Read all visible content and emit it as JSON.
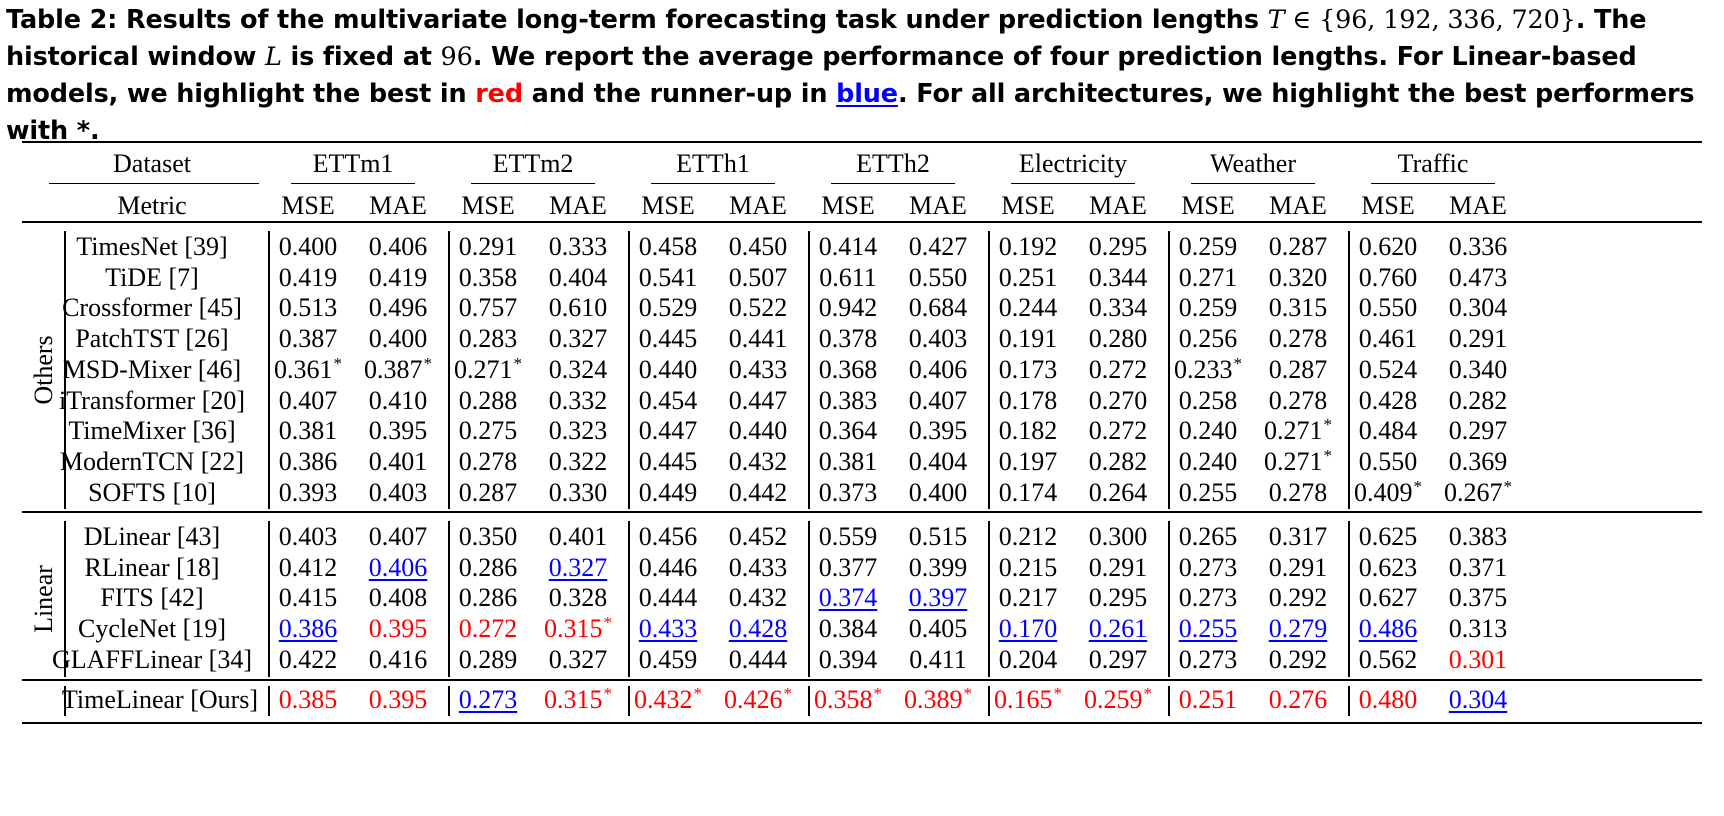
{
  "caption": {
    "label": "Table 2:",
    "part1": "Results of the multivariate long-term forecasting task under prediction lengths",
    "T_symbol": "T",
    "set_expr": "∈ {96, 192, 336, 720}",
    "part2": ". The historical window",
    "L_symbol": "L",
    "part3": "is fixed at",
    "L_value": "96",
    "part4": ". We report the average performance of four prediction lengths. For Linear-based models, we highlight the best in",
    "red_word": "red",
    "part5": "and the runner-up in",
    "blue_word": "blue",
    "part6": ". For all architectures, we highlight the best performers with *."
  },
  "table": {
    "dataset_label": "Dataset",
    "metric_label": "Metric",
    "datasets": [
      "ETTm1",
      "ETTm2",
      "ETTh1",
      "ETTh2",
      "Electricity",
      "Weather",
      "Traffic"
    ],
    "metrics": [
      "MSE",
      "MAE"
    ],
    "groups": [
      {
        "name": "Others",
        "rows": [
          {
            "model": "TimesNet [39]",
            "values": [
              "0.400",
              "0.406",
              "0.291",
              "0.333",
              "0.458",
              "0.450",
              "0.414",
              "0.427",
              "0.192",
              "0.295",
              "0.259",
              "0.287",
              "0.620",
              "0.336"
            ]
          },
          {
            "model": "TiDE [7]",
            "values": [
              "0.419",
              "0.419",
              "0.358",
              "0.404",
              "0.541",
              "0.507",
              "0.611",
              "0.550",
              "0.251",
              "0.344",
              "0.271",
              "0.320",
              "0.760",
              "0.473"
            ]
          },
          {
            "model": "Crossformer [45]",
            "values": [
              "0.513",
              "0.496",
              "0.757",
              "0.610",
              "0.529",
              "0.522",
              "0.942",
              "0.684",
              "0.244",
              "0.334",
              "0.259",
              "0.315",
              "0.550",
              "0.304"
            ]
          },
          {
            "model": "PatchTST [26]",
            "values": [
              "0.387",
              "0.400",
              "0.283",
              "0.327",
              "0.445",
              "0.441",
              "0.378",
              "0.403",
              "0.191",
              "0.280",
              "0.256",
              "0.278",
              "0.461",
              "0.291"
            ]
          },
          {
            "model": "MSD-Mixer [46]",
            "values": [
              "0.361*",
              "0.387*",
              "0.271*",
              "0.324",
              "0.440",
              "0.433",
              "0.368",
              "0.406",
              "0.173",
              "0.272",
              "0.233*",
              "0.287",
              "0.524",
              "0.340"
            ]
          },
          {
            "model": "iTransformer [20]",
            "values": [
              "0.407",
              "0.410",
              "0.288",
              "0.332",
              "0.454",
              "0.447",
              "0.383",
              "0.407",
              "0.178",
              "0.270",
              "0.258",
              "0.278",
              "0.428",
              "0.282"
            ]
          },
          {
            "model": "TimeMixer [36]",
            "values": [
              "0.381",
              "0.395",
              "0.275",
              "0.323",
              "0.447",
              "0.440",
              "0.364",
              "0.395",
              "0.182",
              "0.272",
              "0.240",
              "0.271*",
              "0.484",
              "0.297"
            ]
          },
          {
            "model": "ModernTCN [22]",
            "values": [
              "0.386",
              "0.401",
              "0.278",
              "0.322",
              "0.445",
              "0.432",
              "0.381",
              "0.404",
              "0.197",
              "0.282",
              "0.240",
              "0.271*",
              "0.550",
              "0.369"
            ]
          },
          {
            "model": "SOFTS [10]",
            "values": [
              "0.393",
              "0.403",
              "0.287",
              "0.330",
              "0.449",
              "0.442",
              "0.373",
              "0.400",
              "0.174",
              "0.264",
              "0.255",
              "0.278",
              "0.409*",
              "0.267*"
            ]
          }
        ]
      },
      {
        "name": "Linear",
        "rows": [
          {
            "model": "DLinear [43]",
            "values": [
              "0.403",
              "0.407",
              "0.350",
              "0.401",
              "0.456",
              "0.452",
              "0.559",
              "0.515",
              "0.212",
              "0.300",
              "0.265",
              "0.317",
              "0.625",
              "0.383"
            ]
          },
          {
            "model": "RLinear [18]",
            "values": [
              "0.412",
              "0.406",
              "0.286",
              "0.327",
              "0.446",
              "0.433",
              "0.377",
              "0.399",
              "0.215",
              "0.291",
              "0.273",
              "0.291",
              "0.623",
              "0.371"
            ],
            "styles": [
              "",
              "blue",
              "",
              "blue",
              "",
              "",
              "",
              "",
              "",
              "",
              "",
              "",
              "",
              ""
            ]
          },
          {
            "model": "FITS [42]",
            "values": [
              "0.415",
              "0.408",
              "0.286",
              "0.328",
              "0.444",
              "0.432",
              "0.374",
              "0.397",
              "0.217",
              "0.295",
              "0.273",
              "0.292",
              "0.627",
              "0.375"
            ],
            "styles": [
              "",
              "",
              "",
              "",
              "",
              "",
              "blue",
              "blue",
              "",
              "",
              "",
              "",
              "",
              ""
            ]
          },
          {
            "model": "CycleNet [19]",
            "values": [
              "0.386",
              "0.395",
              "0.272",
              "0.315*",
              "0.433",
              "0.428",
              "0.384",
              "0.405",
              "0.170",
              "0.261",
              "0.255",
              "0.279",
              "0.486",
              "0.313"
            ],
            "styles": [
              "blue",
              "red",
              "red",
              "red",
              "blue",
              "blue",
              "",
              "",
              "blue",
              "blue",
              "blue",
              "blue",
              "blue",
              ""
            ]
          },
          {
            "model": "GLAFFLinear [34]",
            "values": [
              "0.422",
              "0.416",
              "0.289",
              "0.327",
              "0.459",
              "0.444",
              "0.394",
              "0.411",
              "0.204",
              "0.297",
              "0.273",
              "0.292",
              "0.562",
              "0.301"
            ],
            "styles": [
              "",
              "",
              "",
              "",
              "",
              "",
              "",
              "",
              "",
              "",
              "",
              "",
              "",
              "red"
            ]
          }
        ]
      }
    ],
    "ours": {
      "model": "TimeLinear [Ours]",
      "values": [
        "0.385",
        "0.395",
        "0.273",
        "0.315*",
        "0.432*",
        "0.426*",
        "0.358*",
        "0.389*",
        "0.165*",
        "0.259*",
        "0.251",
        "0.276",
        "0.480",
        "0.304"
      ],
      "styles": [
        "red",
        "red",
        "blue",
        "red",
        "red",
        "red",
        "red",
        "red",
        "red",
        "red",
        "red",
        "red",
        "red",
        "blue"
      ]
    }
  },
  "colors": {
    "red": "#ff0000",
    "blue": "#0000ff"
  }
}
